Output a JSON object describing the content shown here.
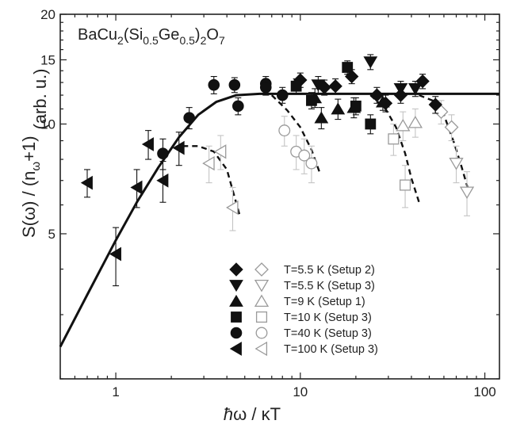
{
  "chart_data": {
    "type": "scatter",
    "title": "",
    "xscale": "log",
    "yscale": "log",
    "xlim": [
      0.5,
      120
    ],
    "ylim": [
      2.0,
      20
    ],
    "xticks": [
      {
        "v": 1,
        "label": "1"
      },
      {
        "v": 10,
        "label": "10"
      },
      {
        "v": 100,
        "label": "100"
      }
    ],
    "yticks": [
      {
        "v": 5,
        "label": "5"
      },
      {
        "v": 10,
        "label": "10"
      },
      {
        "v": 15,
        "label": "15"
      },
      {
        "v": 20,
        "label": "20"
      }
    ],
    "xlabel": {
      "pre": "",
      "hbar": "ħ",
      "mid": "ω / κT"
    },
    "ylabel": {
      "a": "S(ω) / (n",
      "sub": "ω",
      "b": "+1)",
      "units": "(arb. u.)"
    },
    "annotation": {
      "a": "BaCu",
      "s1": "2",
      "b": "(Si",
      "s2": "0.5",
      "c": "Ge",
      "s3": "0.5",
      "d": ")",
      "s4": "2",
      "e": "O",
      "s5": "7"
    },
    "legend": [
      {
        "label": "T=5.5 K (Setup 2)",
        "marker": "diamond"
      },
      {
        "label": "T=5.5 K (Setup 3)",
        "marker": "triangle-down"
      },
      {
        "label": "T=9 K (Setup 1)",
        "marker": "triangle-up"
      },
      {
        "label": "T=10 K (Setup 3)",
        "marker": "square"
      },
      {
        "label": "T=40 K (Setup 3)",
        "marker": "circle"
      },
      {
        "label": "T=100 K (Setup 3)",
        "marker": "triangle-left"
      }
    ],
    "series": [
      {
        "marker": "diamond",
        "filled": [
          [
            10,
            13.2,
            0.6
          ],
          [
            13.5,
            12.6,
            0.6
          ],
          [
            15.5,
            12.7,
            0.6
          ],
          [
            19,
            13.5,
            0.6
          ],
          [
            26,
            12,
            0.6
          ],
          [
            29,
            11.4,
            0.6
          ],
          [
            35,
            12,
            0.6
          ],
          [
            46,
            13.1,
            0.6
          ],
          [
            54,
            11.3,
            0.6
          ]
        ],
        "open": [
          [
            58,
            10.8,
            0.8
          ],
          [
            66,
            9.8,
            0.8
          ]
        ]
      },
      {
        "marker": "triangle-down",
        "filled": [
          [
            12.5,
            12.8,
            0.7
          ],
          [
            24,
            14.8,
            0.7
          ],
          [
            35,
            12.5,
            0.6
          ],
          [
            42,
            12.5,
            0.6
          ]
        ],
        "open": [
          [
            70,
            7.8,
            0.9
          ],
          [
            80,
            6.5,
            0.9
          ]
        ]
      },
      {
        "marker": "triangle-up",
        "filled": [
          [
            12,
            11.8,
            0.7
          ],
          [
            13,
            10.4,
            0.7
          ],
          [
            16,
            11,
            0.7
          ],
          [
            19.5,
            11.1,
            0.7
          ],
          [
            28,
            11.5,
            0.6
          ]
        ],
        "open": [
          [
            36,
            9.9,
            0.9
          ],
          [
            42,
            10.1,
            0.9
          ]
        ]
      },
      {
        "marker": "square",
        "filled": [
          [
            9.5,
            12.7,
            0.6
          ],
          [
            11.5,
            11.6,
            0.6
          ],
          [
            18,
            14.3,
            0.6
          ],
          [
            20,
            11.2,
            0.6
          ],
          [
            24,
            10,
            0.6
          ]
        ],
        "open": [
          [
            32,
            9.1,
            0.9
          ],
          [
            37,
            6.8,
            0.9
          ]
        ]
      },
      {
        "marker": "circle",
        "filled": [
          [
            1.8,
            8.3,
            0.8
          ],
          [
            2.5,
            10.4,
            0.7
          ],
          [
            3.4,
            12.8,
            0.7
          ],
          [
            4.4,
            12.8,
            0.6
          ],
          [
            4.6,
            11.2,
            0.6
          ],
          [
            6.5,
            12.9,
            0.6
          ],
          [
            6.5,
            12.6,
            0.6
          ],
          [
            8,
            12,
            0.6
          ]
        ],
        "open": [
          [
            8.2,
            9.6,
            0.9
          ],
          [
            9.5,
            8.4,
            0.9
          ],
          [
            10.5,
            8.2,
            0.9
          ],
          [
            11.5,
            7.8,
            0.9
          ]
        ]
      },
      {
        "marker": "triangle-left",
        "filled": [
          [
            0.7,
            6.9,
            0.6
          ],
          [
            1.0,
            4.4,
            0.8
          ],
          [
            1.3,
            6.7,
            0.8
          ],
          [
            1.5,
            8.8,
            0.8
          ],
          [
            1.8,
            7.0,
            0.9
          ],
          [
            2.2,
            8.6,
            0.9
          ]
        ],
        "open": [
          [
            3.2,
            7.8,
            0.9
          ],
          [
            3.7,
            8.4,
            0.9
          ],
          [
            4.3,
            5.9,
            0.8
          ]
        ]
      }
    ],
    "fit_curve": {
      "style": "solid",
      "points": [
        [
          0.5,
          2.45
        ],
        [
          0.7,
          3.4
        ],
        [
          1.0,
          4.8
        ],
        [
          1.3,
          6.1
        ],
        [
          1.7,
          7.6
        ],
        [
          2.2,
          9.2
        ],
        [
          2.8,
          10.6
        ],
        [
          3.5,
          11.5
        ],
        [
          4.5,
          12.0
        ],
        [
          6,
          12.1
        ],
        [
          10,
          12.1
        ],
        [
          30,
          12.1
        ],
        [
          120,
          12.1
        ]
      ]
    },
    "cutoff_curves": [
      {
        "style": "dashed",
        "points": [
          [
            2.3,
            8.7
          ],
          [
            2.8,
            8.7
          ],
          [
            3.4,
            8.4
          ],
          [
            4.0,
            7.5
          ],
          [
            4.7,
            5.6
          ]
        ]
      },
      {
        "style": "dashed",
        "points": [
          [
            7,
            12.0
          ],
          [
            8.5,
            10.9
          ],
          [
            10,
            9.8
          ],
          [
            11.5,
            8.5
          ],
          [
            12.8,
            7.3
          ]
        ]
      },
      {
        "style": "dashed",
        "points": [
          [
            24,
            12.0
          ],
          [
            29,
            11.0
          ],
          [
            33,
            9.8
          ],
          [
            37,
            8.3
          ],
          [
            40,
            7.1
          ],
          [
            44,
            6.1
          ]
        ]
      },
      {
        "style": "dashed",
        "points": [
          [
            44,
            12.0
          ],
          [
            52,
            11.6
          ],
          [
            60,
            10.6
          ],
          [
            68,
            8.9
          ],
          [
            75,
            7.6
          ],
          [
            82,
            6.5
          ]
        ]
      }
    ]
  }
}
